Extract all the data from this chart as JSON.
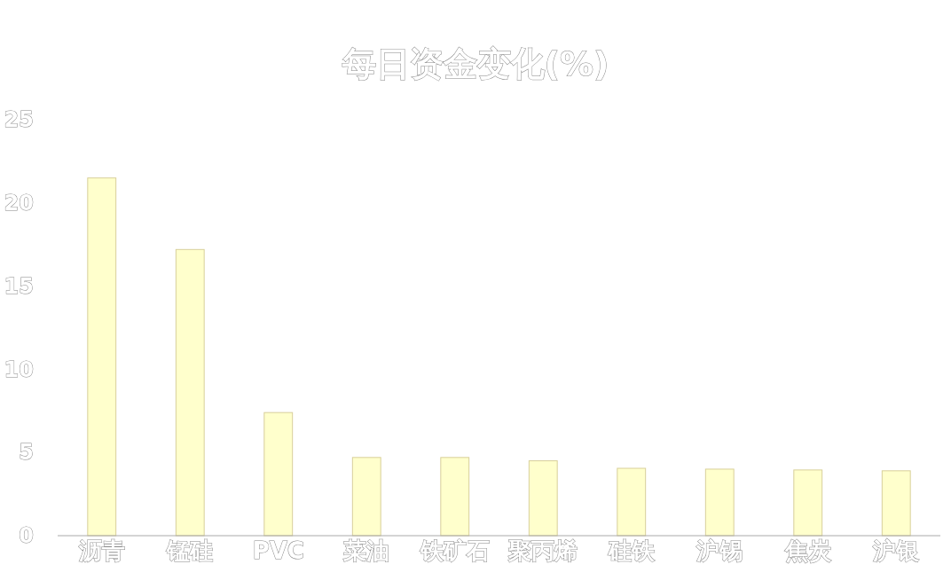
{
  "chart_data": {
    "type": "bar",
    "title": "每日资金变化(%)",
    "categories": [
      "沥青",
      "锰硅",
      "PVC",
      "菜油",
      "铁矿石",
      "聚丙烯",
      "硅铁",
      "沪锡",
      "焦炭",
      "沪银"
    ],
    "values": [
      21.5,
      17.2,
      7.4,
      4.7,
      4.7,
      4.5,
      4.05,
      4.0,
      3.95,
      3.9
    ],
    "color": "#ffffcc",
    "ylim": [
      0,
      25
    ],
    "yticks": [
      0,
      5,
      10,
      15,
      20,
      25
    ],
    "grid": false
  }
}
